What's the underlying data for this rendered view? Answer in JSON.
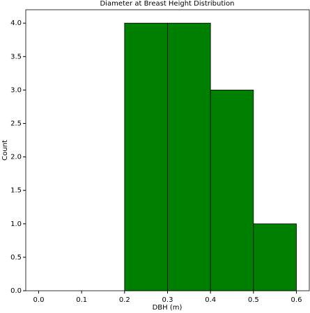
{
  "chart_data": {
    "type": "histogram",
    "title": "Diameter at Breast Height Distribution",
    "xlabel": "DBH (m)",
    "ylabel": "Count",
    "bins": [
      0.2,
      0.3,
      0.4,
      0.5,
      0.6
    ],
    "values": [
      4,
      4,
      3,
      1
    ],
    "color": "#008000",
    "edgecolor": "#000000",
    "xlim": [
      -0.03,
      0.63
    ],
    "ylim": [
      0,
      4.2
    ],
    "xticks": [
      {
        "value": 0,
        "label": "0.0"
      },
      0.1,
      0.2,
      0.3,
      0.4,
      0.5,
      0.6
    ],
    "yticks": [
      {
        "value": 0,
        "label": "0.0"
      },
      0.5,
      {
        "value": 1,
        "label": "1.0"
      },
      1.5,
      {
        "value": 2,
        "label": "2.0"
      },
      2.5,
      {
        "value": 3,
        "label": "3.0"
      },
      3.5,
      {
        "value": 4,
        "label": "4.0"
      }
    ]
  }
}
